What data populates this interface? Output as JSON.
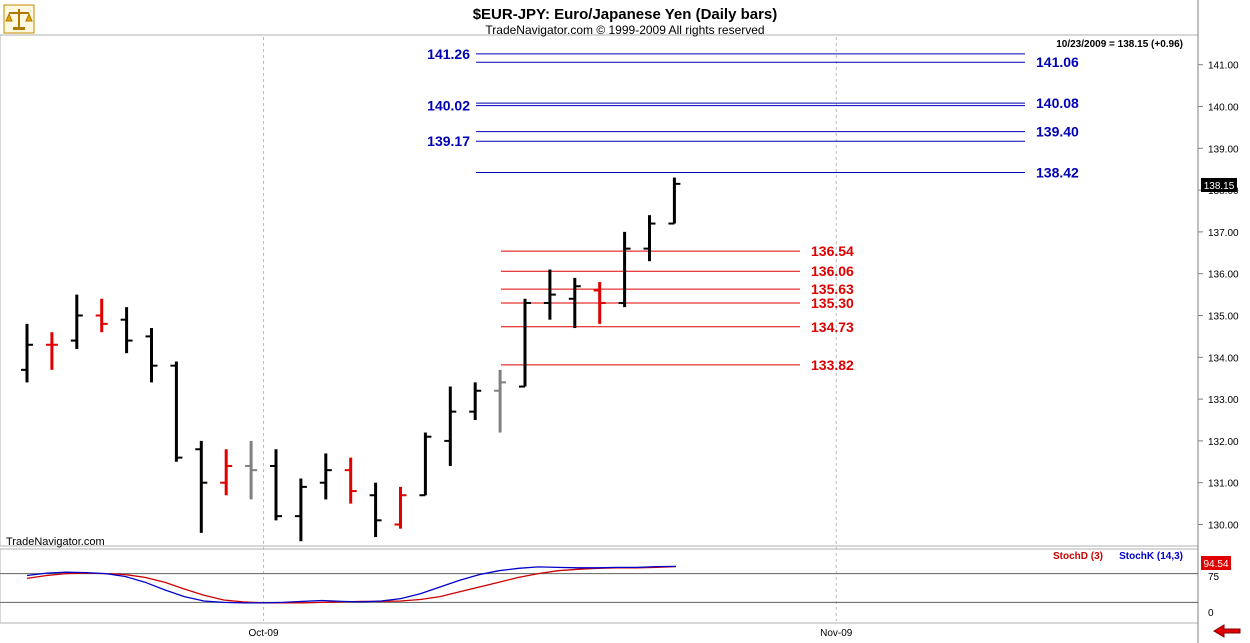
{
  "header": {
    "title": "$EUR-JPY:  Euro/Japanese Yen  (Daily bars)",
    "copyright": "TradeNavigator.com © 1999-2009 All rights reserved",
    "last_quote": "10/23/2009 = 138.15 (+0.96)",
    "watermark": "TradeNavigator.com",
    "logo_icon": "scales-logo-icon"
  },
  "colors": {
    "up": "#000000",
    "down": "#e00000",
    "flat": "#808080",
    "resistance": "#0000b4",
    "support": "#e00000",
    "stochD": "#cc0000",
    "stochK": "#0000cc",
    "price_box": "#000000",
    "stoch_box": "#e00000"
  },
  "chart_data": [
    {
      "type": "ohlc",
      "title": "$EUR-JPY:  Euro/Japanese Yen  (Daily bars)",
      "ylim": [
        129.6,
        141.7
      ],
      "yticks": [
        "130.00",
        "131.00",
        "132.00",
        "133.00",
        "134.00",
        "135.00",
        "136.00",
        "137.00",
        "138.00",
        "139.00",
        "140.00",
        "141.00"
      ],
      "yticks_values": [
        130,
        131,
        132,
        133,
        134,
        135,
        136,
        137,
        138,
        139,
        140,
        141
      ],
      "xlabels": [
        "Oct-09",
        "Nov-09"
      ],
      "xlabel_bars": [
        9.5,
        32.5
      ],
      "last_price": "138.15",
      "bars": [
        {
          "o": 133.7,
          "h": 134.8,
          "l": 133.4,
          "c": 134.3,
          "dir": "up"
        },
        {
          "o": 134.3,
          "h": 134.6,
          "l": 133.7,
          "c": 134.3,
          "dir": "down"
        },
        {
          "o": 134.4,
          "h": 135.5,
          "l": 134.2,
          "c": 135.0,
          "dir": "up"
        },
        {
          "o": 135.0,
          "h": 135.4,
          "l": 134.6,
          "c": 134.8,
          "dir": "down"
        },
        {
          "o": 134.9,
          "h": 135.2,
          "l": 134.1,
          "c": 134.4,
          "dir": "up"
        },
        {
          "o": 134.5,
          "h": 134.7,
          "l": 133.4,
          "c": 133.8,
          "dir": "up"
        },
        {
          "o": 133.8,
          "h": 133.9,
          "l": 131.5,
          "c": 131.6,
          "dir": "up"
        },
        {
          "o": 131.8,
          "h": 132.0,
          "l": 129.8,
          "c": 131.0,
          "dir": "up"
        },
        {
          "o": 131.0,
          "h": 131.8,
          "l": 130.7,
          "c": 131.4,
          "dir": "down"
        },
        {
          "o": 131.4,
          "h": 132.0,
          "l": 130.6,
          "c": 131.3,
          "dir": "flat"
        },
        {
          "o": 131.4,
          "h": 131.8,
          "l": 130.1,
          "c": 130.2,
          "dir": "up"
        },
        {
          "o": 130.2,
          "h": 131.1,
          "l": 129.6,
          "c": 130.9,
          "dir": "up"
        },
        {
          "o": 131.0,
          "h": 131.7,
          "l": 130.6,
          "c": 131.3,
          "dir": "up"
        },
        {
          "o": 131.3,
          "h": 131.6,
          "l": 130.5,
          "c": 130.8,
          "dir": "down"
        },
        {
          "o": 130.7,
          "h": 131.0,
          "l": 129.7,
          "c": 130.1,
          "dir": "up"
        },
        {
          "o": 130.0,
          "h": 130.9,
          "l": 129.9,
          "c": 130.7,
          "dir": "down"
        },
        {
          "o": 130.7,
          "h": 132.2,
          "l": 130.7,
          "c": 132.1,
          "dir": "up"
        },
        {
          "o": 132.0,
          "h": 133.3,
          "l": 131.4,
          "c": 132.7,
          "dir": "up"
        },
        {
          "o": 132.7,
          "h": 133.4,
          "l": 132.5,
          "c": 133.2,
          "dir": "up"
        },
        {
          "o": 133.2,
          "h": 133.7,
          "l": 132.2,
          "c": 133.4,
          "dir": "flat"
        },
        {
          "o": 133.3,
          "h": 135.4,
          "l": 133.3,
          "c": 135.3,
          "dir": "up"
        },
        {
          "o": 135.3,
          "h": 136.1,
          "l": 134.9,
          "c": 135.5,
          "dir": "up"
        },
        {
          "o": 135.4,
          "h": 135.9,
          "l": 134.7,
          "c": 135.7,
          "dir": "up"
        },
        {
          "o": 135.6,
          "h": 135.8,
          "l": 134.8,
          "c": 135.3,
          "dir": "down"
        },
        {
          "o": 135.3,
          "h": 137.0,
          "l": 135.2,
          "c": 136.6,
          "dir": "up"
        },
        {
          "o": 136.6,
          "h": 137.4,
          "l": 136.3,
          "c": 137.2,
          "dir": "up"
        },
        {
          "o": 137.2,
          "h": 138.3,
          "l": 137.2,
          "c": 138.15,
          "dir": "up"
        }
      ],
      "resistance_levels": [
        {
          "value": 141.26,
          "label": "141.26",
          "side": "left"
        },
        {
          "value": 141.06,
          "label": "141.06",
          "side": "right"
        },
        {
          "value": 140.08,
          "label": "140.08",
          "side": "right"
        },
        {
          "value": 140.02,
          "label": "140.02",
          "side": "left"
        },
        {
          "value": 139.4,
          "label": "139.40",
          "side": "right"
        },
        {
          "value": 139.17,
          "label": "139.17",
          "side": "left"
        },
        {
          "value": 138.42,
          "label": "138.42",
          "side": "right"
        }
      ],
      "support_levels": [
        {
          "value": 136.54,
          "label": "136.54"
        },
        {
          "value": 136.06,
          "label": "136.06"
        },
        {
          "value": 135.63,
          "label": "135.63"
        },
        {
          "value": 135.3,
          "label": "135.30"
        },
        {
          "value": 134.73,
          "label": "134.73"
        },
        {
          "value": 133.82,
          "label": "133.82"
        }
      ]
    },
    {
      "type": "line",
      "title": "",
      "ylim": [
        0,
        100
      ],
      "yticks": [
        "75",
        "0"
      ],
      "yticks_values": [
        75,
        0
      ],
      "reference_lines": [
        80,
        20
      ],
      "last_value": "94.54",
      "series": [
        {
          "name": "StochD (3)",
          "color": "#cc0000",
          "values": [
            70,
            76,
            80,
            81,
            80,
            78,
            72,
            62,
            48,
            35,
            25,
            21,
            19,
            19,
            19,
            20,
            21,
            22,
            22,
            23,
            26,
            32,
            42,
            52,
            62,
            72,
            80,
            86,
            89,
            91,
            92,
            92,
            93,
            94.5
          ]
        },
        {
          "name": "StochK (14,3)",
          "color": "#0000cc",
          "values": [
            76,
            81,
            83,
            82,
            80,
            74,
            62,
            46,
            32,
            23,
            20,
            19,
            19,
            20,
            22,
            24,
            22,
            21,
            23,
            28,
            38,
            52,
            66,
            78,
            86,
            91,
            94,
            93,
            92,
            92,
            93,
            93,
            94.5,
            95
          ]
        }
      ]
    }
  ]
}
